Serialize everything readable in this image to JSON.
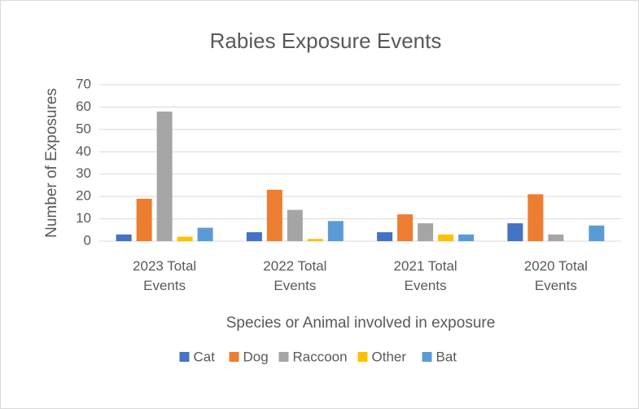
{
  "chart_data": {
    "type": "bar",
    "title": "Rabies Exposure Events",
    "x_label": "Species or Animal involved in exposure",
    "y_label": "Number of Exposures",
    "categories": [
      "2023 Total Events",
      "2022 Total Events",
      "2021 Total Events",
      "2020 Total Events"
    ],
    "series": [
      {
        "name": "Cat",
        "color": "#4472c4",
        "values": [
          3,
          4,
          4,
          8
        ]
      },
      {
        "name": "Dog",
        "color": "#ed7d31",
        "values": [
          19,
          23,
          12,
          21
        ]
      },
      {
        "name": "Raccoon",
        "color": "#a5a5a5",
        "values": [
          58,
          14,
          8,
          3
        ]
      },
      {
        "name": "Other",
        "color": "#ffc000",
        "values": [
          2,
          1,
          3,
          0
        ]
      },
      {
        "name": "Bat",
        "color": "#5b9bd5",
        "values": [
          6,
          9,
          3,
          7
        ]
      }
    ],
    "ylim": [
      0,
      70
    ],
    "yticks": [
      0,
      10,
      20,
      30,
      40,
      50,
      60,
      70
    ],
    "grid": true,
    "legend": "bottom"
  }
}
